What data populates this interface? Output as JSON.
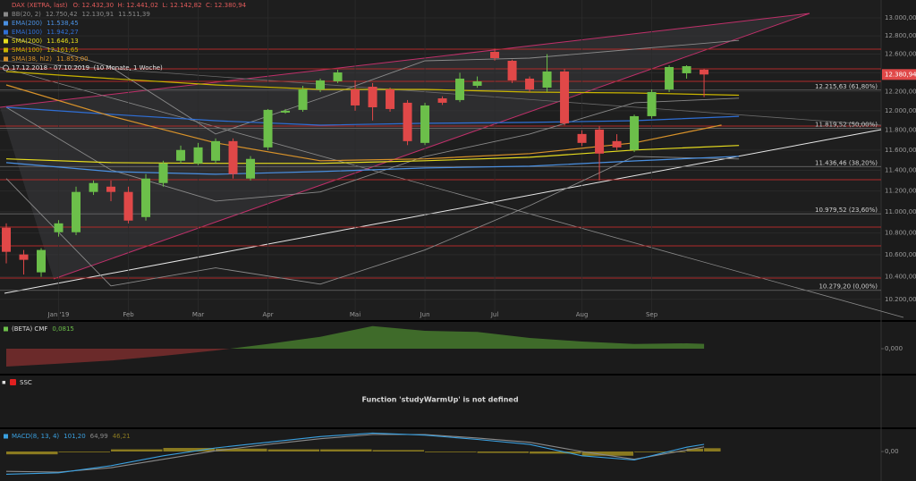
{
  "chart_data": [
    {
      "type": "candlestick",
      "title": "DAX (XETRA, last)",
      "header": "O: 12.432,30  H: 12.441,02  L: 12.142,82  C: 12.380,94",
      "date_range": "17.12.2018 - 07.10.2019  (10 Monate, 1 Woche)",
      "last_price_label": "12.380,94",
      "log": true,
      "grid": true,
      "up_color": "#6cbf4a",
      "down_color": "#e04848",
      "xlim": [
        -0.36,
        50.15
      ],
      "xticks": [
        {
          "value": 3,
          "label": "Jan '19"
        },
        {
          "value": 7,
          "label": "Feb"
        },
        {
          "value": 11,
          "label": "Mar"
        },
        {
          "value": 15,
          "label": "Apr"
        },
        {
          "value": 20,
          "label": "Mai"
        },
        {
          "value": 24,
          "label": "Jun"
        },
        {
          "value": 28,
          "label": "Jul"
        },
        {
          "value": 33,
          "label": "Aug"
        },
        {
          "value": 37,
          "label": "Sep"
        }
      ],
      "ylim": [
        10019,
        13202
      ],
      "yticks": [
        {
          "value": 13000,
          "label": "13.000,00"
        },
        {
          "value": 12800,
          "label": "12.800,00"
        },
        {
          "value": 12600,
          "label": "12.600,00"
        },
        {
          "value": 12400,
          "label": "12.400,00"
        },
        {
          "value": 12200,
          "label": "12.200,00"
        },
        {
          "value": 12000,
          "label": "12.000,00"
        },
        {
          "value": 11800,
          "label": "11.800,00"
        },
        {
          "value": 11600,
          "label": "11.600,00"
        },
        {
          "value": 11400,
          "label": "11.400,00"
        },
        {
          "value": 11200,
          "label": "11.200,00"
        },
        {
          "value": 11000,
          "label": "11.000,00"
        },
        {
          "value": 10800,
          "label": "10.800,00"
        },
        {
          "value": 10600,
          "label": "10.600,00"
        },
        {
          "value": 10400,
          "label": "10.400,00"
        },
        {
          "value": 10200,
          "label": "10.200,00"
        }
      ],
      "fib_levels": [
        {
          "value": 12215.63,
          "label": "12.215,63 (61,80%)"
        },
        {
          "value": 11819.52,
          "label": "11.819,52 (50,00%)"
        },
        {
          "value": 11436.46,
          "label": "11.436,46 (38,20%)"
        },
        {
          "value": 10979.52,
          "label": "10.979,52 (23,60%)"
        },
        {
          "value": 10279.2,
          "label": "10.279,20 (0,00%)"
        }
      ],
      "open": [
        10849,
        10602,
        10440,
        10807,
        10807,
        11189,
        11240,
        11189,
        10949,
        11275,
        11494,
        11468,
        11494,
        11690,
        11319,
        11627,
        11981,
        12009,
        12223,
        12308,
        12223,
        12251,
        12223,
        12083,
        11672,
        12129,
        12111,
        12261,
        12625,
        12528,
        12337,
        12242,
        12413,
        11762,
        11807,
        11690,
        11601,
        11944,
        12223,
        12394,
        12432.3
      ],
      "high": [
        10890,
        10643,
        10660,
        10920,
        11240,
        11300,
        11300,
        11240,
        11363,
        11494,
        11645,
        11672,
        11717,
        11717,
        11540,
        12018,
        12018,
        12261,
        12337,
        12432,
        12318,
        12290,
        12242,
        12111,
        12083,
        12150,
        12400,
        12360,
        12660,
        12540,
        12360,
        12600,
        12440,
        11800,
        11840,
        11760,
        11960,
        12223,
        12480,
        12480,
        12441.02
      ],
      "low": [
        10521,
        10420,
        10400,
        10766,
        10780,
        11160,
        11100,
        10890,
        10916,
        11240,
        11468,
        11450,
        11468,
        11319,
        11300,
        11600,
        11970,
        11990,
        12195,
        12290,
        12000,
        11900,
        11990,
        11650,
        11650,
        12060,
        12090,
        12240,
        12530,
        12290,
        12195,
        12200,
        11850,
        11640,
        11300,
        11600,
        11580,
        11920,
        12195,
        12337,
        12142.82
      ],
      "close": [
        10626,
        10553,
        10643,
        10890,
        11189,
        11275,
        11189,
        10916,
        11319,
        11468,
        11601,
        11627,
        11690,
        11363,
        11512,
        12009,
        12000,
        12223,
        12318,
        12403,
        12055,
        12036,
        12018,
        11690,
        12055,
        12083,
        12337,
        12308,
        12557,
        12318,
        12223,
        12413,
        11871,
        11672,
        11565,
        11627,
        11944,
        12195,
        12461,
        12470,
        12380.94
      ],
      "bands": {
        "name": "BB(20, 2)",
        "color": "#8a8a8a",
        "x": [
          0,
          6,
          12,
          18,
          24,
          30,
          36,
          42
        ],
        "upper": [
          12801,
          12461,
          11762,
          12129,
          12528,
          12557,
          12654,
          12750.42
        ],
        "middle": [
          12036,
          11404,
          11101,
          11189,
          11536,
          11762,
          12083,
          12130.91
        ],
        "lower": [
          11319,
          10318,
          10480,
          10334,
          10643,
          11058,
          11536,
          11511.39
        ],
        "value_labels": [
          "12.750,42",
          "12.130,91",
          "11.511,39"
        ]
      },
      "series": [
        {
          "name": "EMA(200)",
          "color": "#4a90e2",
          "x": [
            0,
            6,
            12,
            18,
            24,
            30,
            36,
            42
          ],
          "values": [
            11475,
            11387,
            11361,
            11387,
            11422,
            11440,
            11492,
            11538.45
          ],
          "value_label": "11.538,45"
        },
        {
          "name": "EMA(100)",
          "color": "#2f6fd6",
          "x": [
            0,
            6,
            12,
            18,
            24,
            30,
            36,
            42
          ],
          "values": [
            12036,
            11963,
            11898,
            11852,
            11871,
            11880,
            11898,
            11942.27
          ],
          "value_label": "11.942,27"
        },
        {
          "name": "SMA(200)",
          "color": "#e6dc1e",
          "x": [
            0,
            6,
            12,
            18,
            24,
            30,
            36,
            42
          ],
          "values": [
            11512,
            11475,
            11468,
            11468,
            11494,
            11528,
            11601,
            11646.13
          ],
          "value_label": "11.646,13"
        },
        {
          "name": "SMA(100)",
          "color": "#c9b400",
          "x": [
            0,
            6,
            12,
            18,
            24,
            30,
            36,
            42
          ],
          "values": [
            12413,
            12337,
            12270,
            12223,
            12223,
            12195,
            12185,
            12161.65
          ],
          "value_label": "12.161,65"
        },
        {
          "name": "SMA(38, hl2)",
          "color": "#d8922a",
          "x": [
            0,
            6,
            12,
            18,
            24,
            30,
            36,
            41
          ],
          "values": [
            12270,
            11944,
            11672,
            11494,
            11512,
            11565,
            11672,
            11853.0
          ],
          "value_label": "11.853,00"
        }
      ]
    },
    {
      "type": "area",
      "name": "(BETA) CMF",
      "value_label": "0,0815",
      "pos_color": "#3f6b2a",
      "neg_color": "#6b2a2a",
      "ylim": [
        -0.42,
        0.45
      ],
      "yticks": [
        {
          "value": 0,
          "label": "0,000"
        }
      ],
      "x": [
        0,
        3,
        6,
        9,
        12,
        15,
        18,
        21,
        24,
        27,
        30,
        33,
        36,
        39,
        40
      ],
      "values": [
        -0.3,
        -0.25,
        -0.2,
        -0.12,
        -0.03,
        0.08,
        0.2,
        0.38,
        0.3,
        0.28,
        0.18,
        0.12,
        0.08,
        0.09,
        0.0815
      ]
    },
    {
      "type": "message",
      "name": "SSC",
      "message": "Function 'studyWarmUp' is not defined"
    },
    {
      "type": "macd",
      "name": "MACD(8, 13, 4)",
      "ylim": [
        -416,
        315
      ],
      "yticks": [
        {
          "value": 0,
          "label": "0,00"
        }
      ],
      "x": [
        0,
        3,
        6,
        9,
        12,
        15,
        18,
        21,
        24,
        27,
        30,
        33,
        36,
        39,
        40
      ],
      "series": [
        {
          "name": "MACD",
          "color": "#3aa0e0",
          "values": [
            -320,
            -300,
            -200,
            -60,
            50,
            130,
            210,
            260,
            230,
            170,
            100,
            -60,
            -120,
            60,
            101.2
          ],
          "value_label": "101,20"
        },
        {
          "name": "Signal",
          "color": "#8a8a8a",
          "values": [
            -280,
            -290,
            -230,
            -110,
            10,
            100,
            180,
            240,
            240,
            190,
            130,
            0,
            -110,
            20,
            64.99
          ],
          "value_label": "64,99"
        },
        {
          "name": "Histogram",
          "color": "#8a7a20",
          "values": [
            -40,
            -10,
            30,
            50,
            40,
            30,
            30,
            20,
            -10,
            -20,
            -30,
            -60,
            -10,
            40,
            46.21
          ],
          "value_label": "46,21"
        }
      ]
    }
  ]
}
